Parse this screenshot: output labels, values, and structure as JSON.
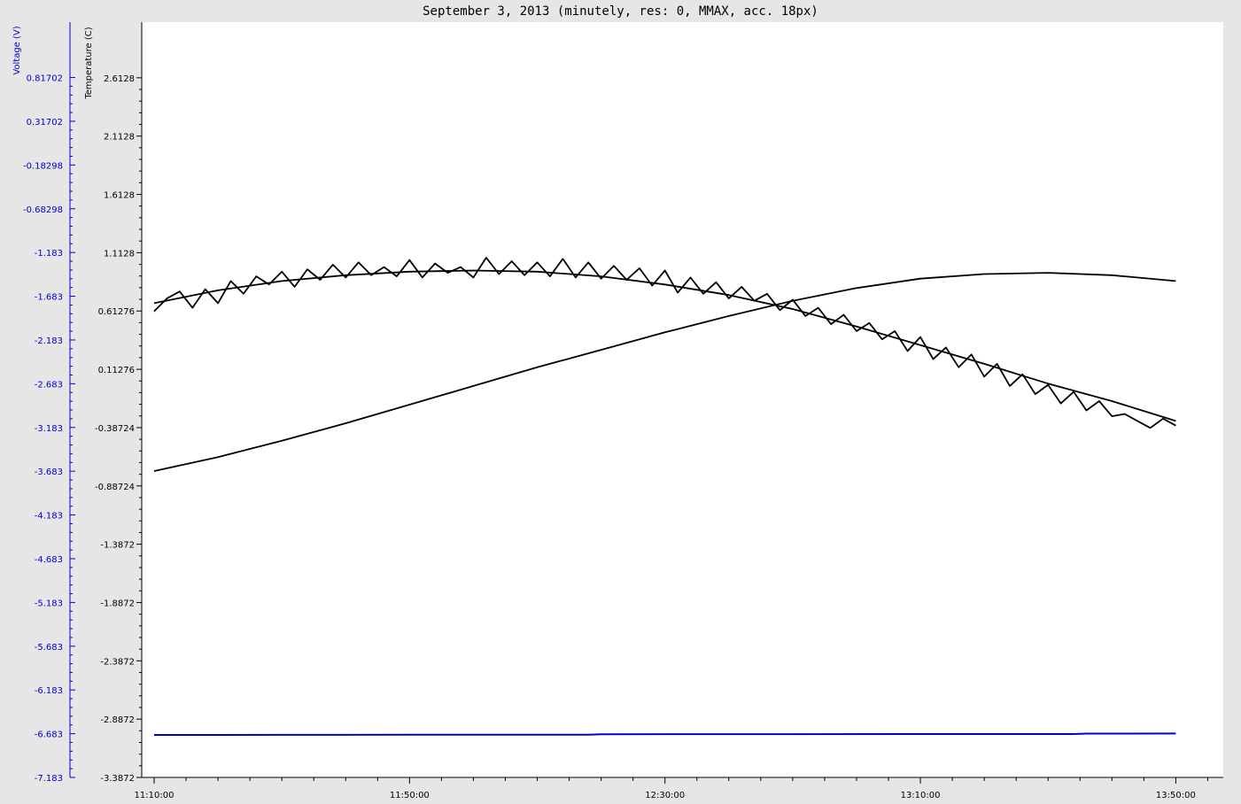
{
  "chart_data": {
    "type": "line",
    "title": "September 3, 2013 (minutely, res: 0, MMAX, acc. 18px)",
    "x_ticks": [
      "11:10:00",
      "11:50:00",
      "12:30:00",
      "13:10:00",
      "13:50:00"
    ],
    "x_range_minutes": [
      0,
      160.5
    ],
    "y_axes": [
      {
        "label": "Temperature (C)",
        "color": "#000000",
        "ticks": [
          "2.6128",
          "2.1128",
          "1.6128",
          "1.1128",
          "0.61276",
          "0.11276",
          "-0.38724",
          "-0.88724",
          "-1.3872",
          "-1.8872",
          "-2.3872",
          "-2.8872",
          "-3.3872"
        ],
        "range": [
          -3.3872,
          3.09
        ]
      },
      {
        "label": "Voltage (V)",
        "color": "#0000cc",
        "ticks": [
          "0.81702",
          "0.31702",
          "-0.18298",
          "-0.68298",
          "-1.183",
          "-1.683",
          "-2.183",
          "-2.683",
          "-3.183",
          "-3.683",
          "-4.183",
          "-4.683",
          "-5.183",
          "-5.683",
          "-6.183",
          "-6.683",
          "-7.183"
        ],
        "range": [
          -7.183,
          1.45
        ]
      }
    ],
    "series": [
      {
        "axis": "temperature",
        "color": "#000000",
        "x": [
          0,
          10,
          20,
          30,
          40,
          50,
          60,
          70,
          80,
          90,
          100,
          110,
          120,
          130,
          140,
          150,
          160
        ],
        "y": [
          -0.76,
          -0.64,
          -0.5,
          -0.35,
          -0.19,
          -0.03,
          0.13,
          0.28,
          0.43,
          0.57,
          0.7,
          0.81,
          0.89,
          0.93,
          0.94,
          0.92,
          0.87
        ]
      },
      {
        "axis": "temperature",
        "color": "#000000",
        "x": [
          0,
          10,
          20,
          30,
          40,
          50,
          60,
          70,
          80,
          90,
          100,
          110,
          120,
          130,
          140,
          150,
          160
        ],
        "y": [
          0.68,
          0.79,
          0.87,
          0.92,
          0.95,
          0.96,
          0.95,
          0.91,
          0.84,
          0.75,
          0.63,
          0.48,
          0.32,
          0.16,
          -0.01,
          -0.16,
          -0.33
        ]
      },
      {
        "axis": "temperature",
        "color": "#000000",
        "x": [
          0,
          2,
          4,
          6,
          8,
          10,
          12,
          14,
          16,
          18,
          20,
          22,
          24,
          26,
          28,
          30,
          32,
          34,
          36,
          38,
          40,
          42,
          44,
          46,
          48,
          50,
          52,
          54,
          56,
          58,
          60,
          62,
          64,
          66,
          68,
          70,
          72,
          74,
          76,
          78,
          80,
          82,
          84,
          86,
          88,
          90,
          92,
          94,
          96,
          98,
          100,
          102,
          104,
          106,
          108,
          110,
          112,
          114,
          116,
          118,
          120,
          122,
          124,
          126,
          128,
          130,
          132,
          134,
          136,
          138,
          140,
          142,
          144,
          146,
          148,
          150,
          152,
          154,
          156,
          158,
          160
        ],
        "y": [
          0.61,
          0.72,
          0.78,
          0.64,
          0.8,
          0.68,
          0.87,
          0.76,
          0.91,
          0.84,
          0.95,
          0.82,
          0.97,
          0.88,
          1.01,
          0.9,
          1.03,
          0.92,
          0.99,
          0.91,
          1.05,
          0.9,
          1.02,
          0.94,
          0.99,
          0.9,
          1.07,
          0.93,
          1.04,
          0.92,
          1.03,
          0.91,
          1.06,
          0.9,
          1.03,
          0.89,
          1.0,
          0.88,
          0.98,
          0.83,
          0.96,
          0.77,
          0.9,
          0.76,
          0.86,
          0.72,
          0.82,
          0.7,
          0.76,
          0.62,
          0.71,
          0.57,
          0.64,
          0.5,
          0.58,
          0.44,
          0.51,
          0.37,
          0.44,
          0.27,
          0.39,
          0.2,
          0.3,
          0.13,
          0.24,
          0.05,
          0.16,
          -0.03,
          0.07,
          -0.1,
          -0.02,
          -0.18,
          -0.08,
          -0.24,
          -0.16,
          -0.29,
          -0.27,
          -0.33,
          -0.39,
          -0.31,
          -0.37
        ]
      },
      {
        "axis": "voltage",
        "color": "#0000cc",
        "x": [
          0,
          20,
          40,
          60,
          68,
          70,
          100,
          130,
          144,
          146,
          160
        ],
        "y": [
          -6.697,
          -6.696,
          -6.695,
          -6.694,
          -6.694,
          -6.689,
          -6.688,
          -6.687,
          -6.687,
          -6.682,
          -6.681
        ]
      }
    ]
  }
}
